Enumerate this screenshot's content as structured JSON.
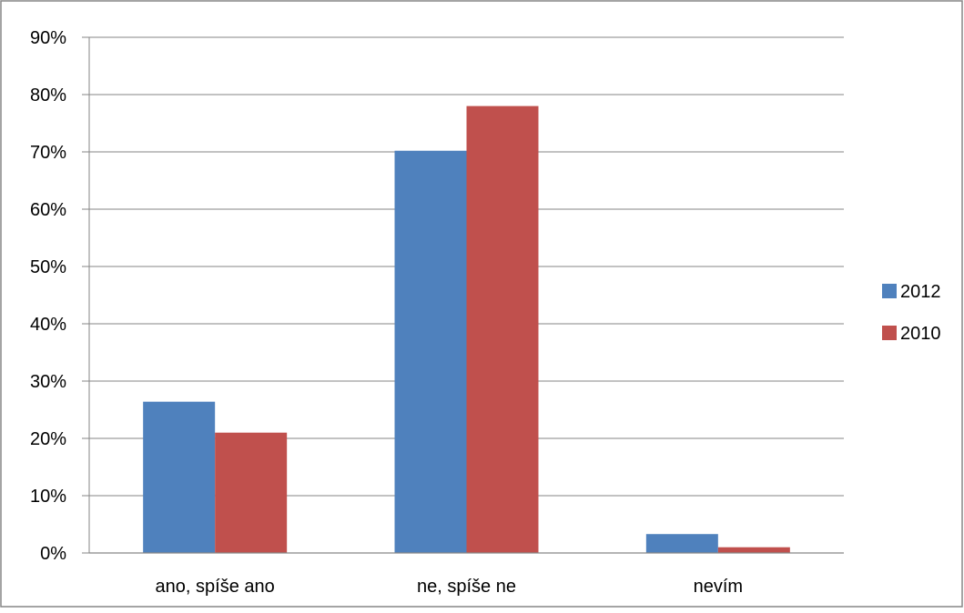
{
  "chart_data": {
    "type": "bar",
    "categories": [
      "ano, spíše ano",
      "ne, spíše ne",
      "nevím"
    ],
    "series": [
      {
        "name": "2012",
        "values": [
          26.4,
          70.2,
          3.3
        ],
        "color": "#4F81BD"
      },
      {
        "name": "2010",
        "values": [
          21.0,
          78.0,
          1.0
        ],
        "color": "#C0504D"
      }
    ],
    "ylim": [
      0,
      90
    ],
    "yticks": [
      0,
      10,
      20,
      30,
      40,
      50,
      60,
      70,
      80,
      90
    ],
    "ytick_labels": [
      "0%",
      "10%",
      "20%",
      "30%",
      "40%",
      "50%",
      "60%",
      "70%",
      "80%",
      "90%"
    ],
    "grid": true,
    "legend": "right",
    "title": "",
    "xlabel": "",
    "ylabel": ""
  },
  "colors": {
    "gridline": "#868686",
    "frame": "#868686"
  }
}
